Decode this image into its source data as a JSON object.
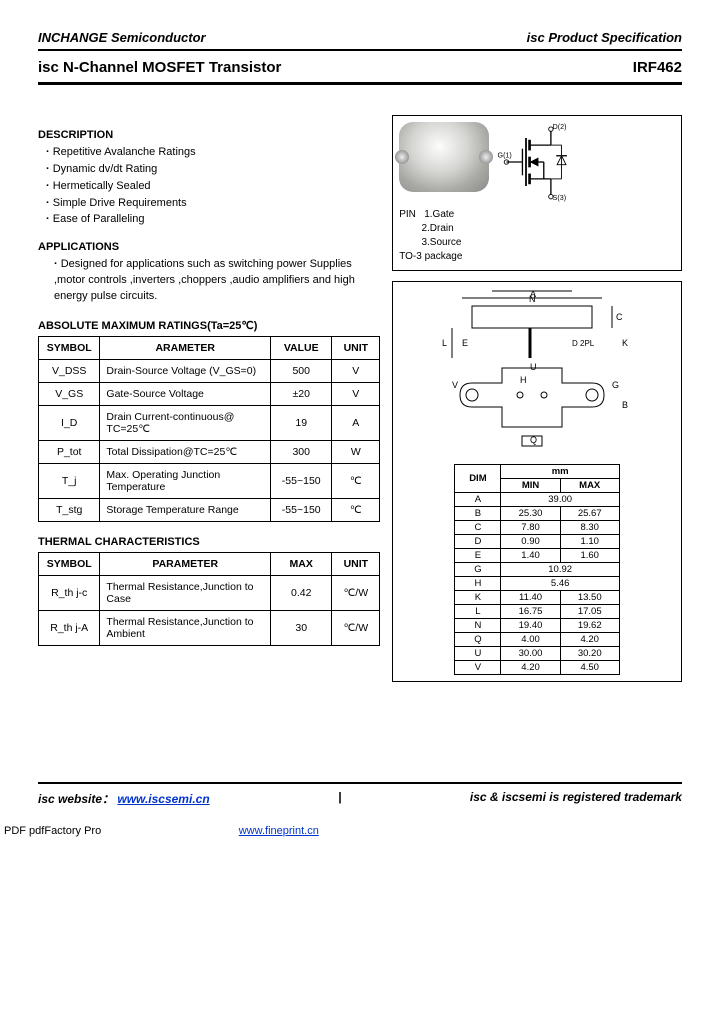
{
  "header": {
    "company": "INCHANGE Semiconductor",
    "doc_type": "isc Product Specification"
  },
  "title": {
    "product": "isc N-Channel MOSFET Transistor",
    "part_number": "IRF462"
  },
  "description": {
    "heading": "DESCRIPTION",
    "items": [
      "Repetitive Avalanche Ratings",
      "Dynamic dv/dt Rating",
      "Hermetically Sealed",
      "Simple Drive Requirements",
      "Ease of Paralleling"
    ]
  },
  "applications": {
    "heading": "APPLICATIONS",
    "text": "Designed for applications such as switching power Supplies ,motor controls ,inverters ,choppers ,audio amplifiers and high energy pulse circuits."
  },
  "amr": {
    "heading": "ABSOLUTE MAXIMUM RATINGS(Ta=25℃)",
    "cols": [
      "SYMBOL",
      "ARAMETER",
      "VALUE",
      "UNIT"
    ],
    "rows": [
      [
        "V_DSS",
        "Drain-Source Voltage (V_GS=0)",
        "500",
        "V"
      ],
      [
        "V_GS",
        "Gate-Source Voltage",
        "±20",
        "V"
      ],
      [
        "I_D",
        "Drain Current-continuous@ TC=25℃",
        "19",
        "A"
      ],
      [
        "P_tot",
        "Total Dissipation@TC=25℃",
        "300",
        "W"
      ],
      [
        "T_j",
        "Max. Operating Junction Temperature",
        "-55~150",
        "℃"
      ],
      [
        "T_stg",
        "Storage Temperature Range",
        "-55~150",
        "℃"
      ]
    ],
    "col_widths": [
      "18%",
      "50%",
      "18%",
      "14%"
    ]
  },
  "thermal": {
    "heading": "THERMAL CHARACTERISTICS",
    "cols": [
      "SYMBOL",
      "PARAMETER",
      "MAX",
      "UNIT"
    ],
    "rows": [
      [
        "R_th j-c",
        "Thermal Resistance,Junction to Case",
        "0.42",
        "℃/W"
      ],
      [
        "R_th j-A",
        "Thermal Resistance,Junction to Ambient",
        "30",
        "℃/W"
      ]
    ],
    "col_widths": [
      "18%",
      "50%",
      "18%",
      "14%"
    ]
  },
  "pinout": {
    "pin_label": "PIN",
    "pins": [
      "1.Gate",
      "2.Drain",
      "3.Source"
    ],
    "package": "TO-3 package",
    "sym_labels": {
      "drain": "D(2)",
      "gate": "G(1)",
      "source": "S(3)"
    }
  },
  "dimensions": {
    "unit_header": "mm",
    "cols": [
      "DIM",
      "MIN",
      "MAX"
    ],
    "rows": [
      [
        "A",
        "39.00",
        ""
      ],
      [
        "B",
        "25.30",
        "25.67"
      ],
      [
        "C",
        "7.80",
        "8.30"
      ],
      [
        "D",
        "0.90",
        "1.10"
      ],
      [
        "E",
        "1.40",
        "1.60"
      ],
      [
        "G",
        "10.92",
        ""
      ],
      [
        "H",
        "5.46",
        ""
      ],
      [
        "K",
        "11.40",
        "13.50"
      ],
      [
        "L",
        "16.75",
        "17.05"
      ],
      [
        "N",
        "19.40",
        "19.62"
      ],
      [
        "Q",
        "4.00",
        "4.20"
      ],
      [
        "U",
        "30.00",
        "30.20"
      ],
      [
        "V",
        "4.20",
        "4.50"
      ]
    ],
    "drawing_letters": [
      "A",
      "N",
      "C",
      "K",
      "L",
      "E",
      "D",
      "U",
      "V",
      "H",
      "G",
      "B",
      "Q"
    ]
  },
  "footer": {
    "website_label": "isc website：",
    "website_url": "www.iscsemi.cn",
    "trademark": "isc & iscsemi is registered trademark"
  },
  "pdf_footer": {
    "generator": "PDF  pdfFactory Pro",
    "link": "www.fineprint.cn"
  },
  "colors": {
    "rule": "#000000",
    "link": "#0033cc",
    "text": "#000000",
    "bg": "#ffffff"
  }
}
